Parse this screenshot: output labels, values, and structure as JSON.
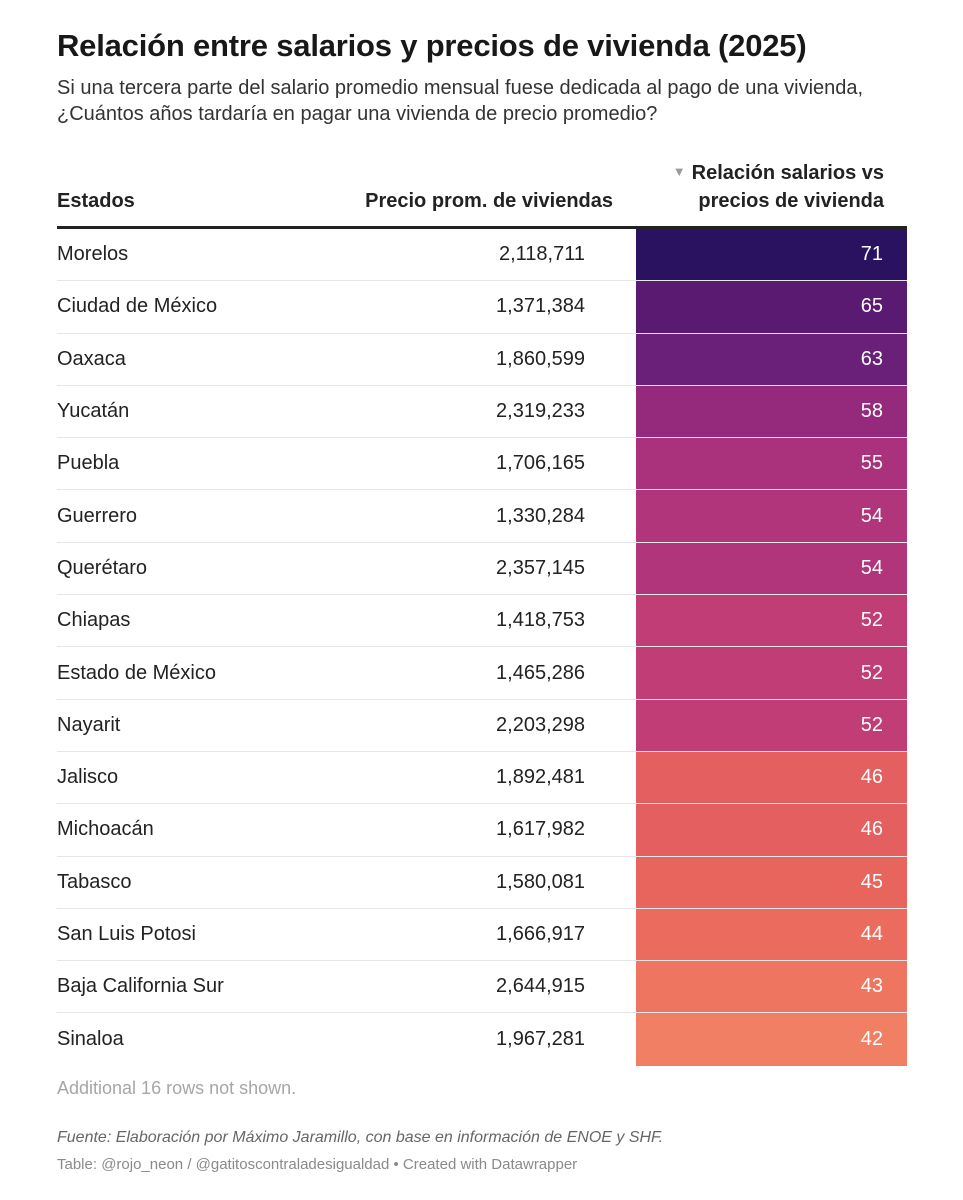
{
  "title": "Relación entre salarios y precios de vivienda (2025)",
  "subtitle": "Si una tercera parte del salario promedio mensual fuese dedicada al pago de una vivienda, ¿Cuántos años tardaría en pagar una vivienda de precio promedio?",
  "footer": {
    "more_rows": "Additional 16 rows not shown.",
    "source": "Fuente: Elaboración por Máximo Jaramillo, con base en información de ENOE y SHF.",
    "credits": "Table: @rojo_neon / @gatitoscontraladesigualdad • Created with Datawrapper"
  },
  "sort_icon": "sort-descending-icon",
  "chart_data": {
    "type": "table",
    "columns": [
      "Estados",
      "Precio prom. de viviendas",
      "Relación salarios vs precios de vivienda"
    ],
    "sorted_by": "Relación salarios vs precios de vivienda",
    "sort_order": "descending",
    "rows": [
      {
        "state": "Morelos",
        "price": "2,118,711",
        "ratio": "71",
        "color": "#2a1260"
      },
      {
        "state": "Ciudad de México",
        "price": "1,371,384",
        "ratio": "65",
        "color": "#5b1a72"
      },
      {
        "state": "Oaxaca",
        "price": "1,860,599",
        "ratio": "63",
        "color": "#6a1f79"
      },
      {
        "state": "Yucatán",
        "price": "2,319,233",
        "ratio": "58",
        "color": "#952a7d"
      },
      {
        "state": "Puebla",
        "price": "1,706,165",
        "ratio": "55",
        "color": "#aa317c"
      },
      {
        "state": "Guerrero",
        "price": "1,330,284",
        "ratio": "54",
        "color": "#b0357b"
      },
      {
        "state": "Querétaro",
        "price": "2,357,145",
        "ratio": "54",
        "color": "#b0357b"
      },
      {
        "state": "Chiapas",
        "price": "1,418,753",
        "ratio": "52",
        "color": "#c03d76"
      },
      {
        "state": "Estado de México",
        "price": "1,465,286",
        "ratio": "52",
        "color": "#c03d76"
      },
      {
        "state": "Nayarit",
        "price": "2,203,298",
        "ratio": "52",
        "color": "#c03d76"
      },
      {
        "state": "Jalisco",
        "price": "1,892,481",
        "ratio": "46",
        "color": "#e45f5f"
      },
      {
        "state": "Michoacán",
        "price": "1,617,982",
        "ratio": "46",
        "color": "#e45f5f"
      },
      {
        "state": "Tabasco",
        "price": "1,580,081",
        "ratio": "45",
        "color": "#e8655e"
      },
      {
        "state": "San Luis Potosi",
        "price": "1,666,917",
        "ratio": "44",
        "color": "#eb6c5e"
      },
      {
        "state": "Baja California Sur",
        "price": "2,644,915",
        "ratio": "43",
        "color": "#ee7560"
      },
      {
        "state": "Sinaloa",
        "price": "1,967,281",
        "ratio": "42",
        "color": "#f07f64"
      }
    ]
  }
}
